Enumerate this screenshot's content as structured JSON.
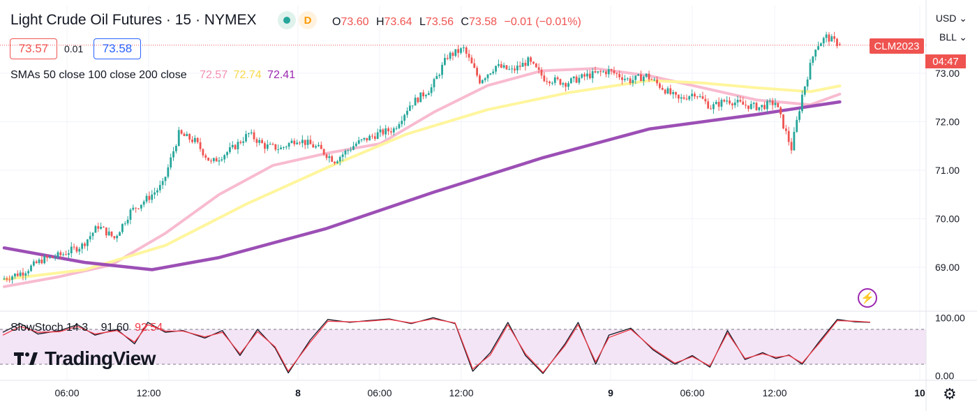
{
  "header": {
    "title": "Light Crude Oil Futures · 15 · NYMEX",
    "badge_dot_icon": "market-open-dot-icon",
    "badge_d": "D",
    "ohlc": [
      {
        "k": "O",
        "v": "73.60"
      },
      {
        "k": "H",
        "v": "73.64"
      },
      {
        "k": "L",
        "v": "73.56"
      },
      {
        "k": "C",
        "v": "73.58"
      },
      {
        "k": "",
        "v": "−0.01 (−0.01%)"
      }
    ]
  },
  "trade": {
    "sell": "73.57",
    "spread": "0.01",
    "buy": "73.58"
  },
  "sma_legend": {
    "label": "SMAs 50 close 100 close 200 close",
    "v50": "72.57",
    "v100": "72.74",
    "v200": "72.41"
  },
  "stoch_legend": {
    "label": "SlowStoch 14 3",
    "k": "91.60",
    "d": "92.54"
  },
  "logo": {
    "text": "TradingView"
  },
  "axis": {
    "currency": "USD",
    "unit": "BLL"
  },
  "price_tag": {
    "symbol": "CLM2023",
    "countdown": "04:47"
  },
  "colors": {
    "up": "#26a69a",
    "down": "#ef5350",
    "sma50": "#f8bbd0",
    "sma100": "#fff59d",
    "sma200": "#9c4fb5",
    "stoch_k": "#131722",
    "stoch_d": "#f23645",
    "stoch_band": "#f3e5f5"
  },
  "chart_data": [
    {
      "type": "candlestick",
      "title": "Light Crude Oil Futures · 15 · NYMEX",
      "y_ticks": [
        69,
        70,
        71,
        72,
        73
      ],
      "ylim": [
        68.5,
        73.95
      ],
      "x_ticks": [
        "06:00",
        "12:00",
        "8",
        "06:00",
        "12:00",
        "9",
        "06:00",
        "12:00",
        "10"
      ],
      "key_points": [
        {
          "t": 0,
          "p": 68.75
        },
        {
          "t": 8,
          "p": 68.9
        },
        {
          "t": 15,
          "p": 69.15
        },
        {
          "t": 22,
          "p": 69.25
        },
        {
          "t": 30,
          "p": 69.45
        },
        {
          "t": 36,
          "p": 69.85
        },
        {
          "t": 42,
          "p": 69.6
        },
        {
          "t": 48,
          "p": 70.15
        },
        {
          "t": 55,
          "p": 70.45
        },
        {
          "t": 60,
          "p": 70.7
        },
        {
          "t": 66,
          "p": 71.75
        },
        {
          "t": 72,
          "p": 71.6
        },
        {
          "t": 78,
          "p": 71.15
        },
        {
          "t": 86,
          "p": 71.45
        },
        {
          "t": 92,
          "p": 71.75
        },
        {
          "t": 98,
          "p": 71.5
        },
        {
          "t": 104,
          "p": 71.45
        },
        {
          "t": 110,
          "p": 71.65
        },
        {
          "t": 118,
          "p": 71.45
        },
        {
          "t": 124,
          "p": 71.2
        },
        {
          "t": 132,
          "p": 71.55
        },
        {
          "t": 140,
          "p": 71.75
        },
        {
          "t": 146,
          "p": 71.85
        },
        {
          "t": 152,
          "p": 72.35
        },
        {
          "t": 160,
          "p": 72.7
        },
        {
          "t": 166,
          "p": 73.35
        },
        {
          "t": 172,
          "p": 73.5
        },
        {
          "t": 178,
          "p": 72.85
        },
        {
          "t": 184,
          "p": 73.15
        },
        {
          "t": 190,
          "p": 73.05
        },
        {
          "t": 196,
          "p": 73.25
        },
        {
          "t": 202,
          "p": 72.9
        },
        {
          "t": 210,
          "p": 72.8
        },
        {
          "t": 218,
          "p": 72.95
        },
        {
          "t": 226,
          "p": 73.05
        },
        {
          "t": 234,
          "p": 72.85
        },
        {
          "t": 240,
          "p": 72.95
        },
        {
          "t": 246,
          "p": 72.7
        },
        {
          "t": 252,
          "p": 72.45
        },
        {
          "t": 258,
          "p": 72.6
        },
        {
          "t": 264,
          "p": 72.3
        },
        {
          "t": 270,
          "p": 72.45
        },
        {
          "t": 276,
          "p": 72.35
        },
        {
          "t": 282,
          "p": 72.3
        },
        {
          "t": 288,
          "p": 72.4
        },
        {
          "t": 294,
          "p": 71.45
        },
        {
          "t": 298,
          "p": 72.55
        },
        {
          "t": 303,
          "p": 73.55
        },
        {
          "t": 307,
          "p": 73.75
        },
        {
          "t": 311,
          "p": 73.62
        }
      ],
      "last": {
        "o": 73.6,
        "h": 73.64,
        "l": 73.56,
        "c": 73.58
      },
      "series": [
        {
          "name": "50",
          "points": [
            [
              0,
              68.6
            ],
            [
              20,
              68.8
            ],
            [
              40,
              69.05
            ],
            [
              60,
              69.7
            ],
            [
              80,
              70.5
            ],
            [
              100,
              71.1
            ],
            [
              120,
              71.35
            ],
            [
              140,
              71.55
            ],
            [
              160,
              72.2
            ],
            [
              180,
              72.75
            ],
            [
              200,
              73.05
            ],
            [
              220,
              73.1
            ],
            [
              240,
              72.95
            ],
            [
              260,
              72.7
            ],
            [
              280,
              72.45
            ],
            [
              300,
              72.35
            ],
            [
              311,
              72.57
            ]
          ]
        },
        {
          "name": "100",
          "points": [
            [
              0,
              68.75
            ],
            [
              30,
              68.95
            ],
            [
              60,
              69.45
            ],
            [
              90,
              70.3
            ],
            [
              120,
              71.05
            ],
            [
              150,
              71.75
            ],
            [
              180,
              72.25
            ],
            [
              210,
              72.6
            ],
            [
              240,
              72.85
            ],
            [
              260,
              72.8
            ],
            [
              280,
              72.7
            ],
            [
              300,
              72.62
            ],
            [
              311,
              72.74
            ]
          ]
        },
        {
          "name": "200",
          "points": [
            [
              0,
              69.4
            ],
            [
              30,
              69.1
            ],
            [
              55,
              68.95
            ],
            [
              80,
              69.2
            ],
            [
              120,
              69.8
            ],
            [
              160,
              70.55
            ],
            [
              200,
              71.25
            ],
            [
              240,
              71.85
            ],
            [
              280,
              72.15
            ],
            [
              311,
              72.41
            ]
          ]
        }
      ]
    },
    {
      "type": "line",
      "title": "SlowStoch 14 3",
      "y_ticks": [
        0,
        100
      ],
      "ylim": [
        -10,
        108
      ],
      "levels": [
        20,
        80
      ],
      "series": [
        {
          "name": "k",
          "points": [
            [
              0,
              75
            ],
            [
              8,
              90
            ],
            [
              16,
              72
            ],
            [
              26,
              78
            ],
            [
              34,
              88
            ],
            [
              42,
              70
            ],
            [
              52,
              80
            ],
            [
              60,
              55
            ],
            [
              66,
              92
            ],
            [
              74,
              75
            ],
            [
              82,
              78
            ],
            [
              92,
              65
            ],
            [
              100,
              78
            ],
            [
              108,
              35
            ],
            [
              116,
              80
            ],
            [
              124,
              48
            ],
            [
              130,
              5
            ],
            [
              140,
              62
            ],
            [
              148,
              97
            ],
            [
              158,
              92
            ],
            [
              166,
              95
            ],
            [
              176,
              98
            ],
            [
              186,
              90
            ],
            [
              196,
              100
            ],
            [
              206,
              90
            ],
            [
              214,
              8
            ],
            [
              222,
              40
            ],
            [
              230,
              92
            ],
            [
              238,
              35
            ],
            [
              246,
              4
            ],
            [
              256,
              55
            ],
            [
              262,
              92
            ],
            [
              270,
              20
            ],
            [
              276,
              70
            ],
            [
              286,
              82
            ],
            [
              296,
              45
            ],
            [
              306,
              20
            ],
            [
              314,
              35
            ],
            [
              322,
              15
            ],
            [
              330,
              78
            ],
            [
              338,
              28
            ],
            [
              346,
              40
            ],
            [
              352,
              30
            ],
            [
              358,
              36
            ],
            [
              364,
              20
            ],
            [
              372,
              60
            ],
            [
              380,
              97
            ],
            [
              388,
              93
            ],
            [
              395,
              92
            ]
          ]
        },
        {
          "name": "d",
          "points": [
            [
              0,
              70
            ],
            [
              8,
              85
            ],
            [
              16,
              75
            ],
            [
              26,
              76
            ],
            [
              34,
              85
            ],
            [
              42,
              72
            ],
            [
              52,
              78
            ],
            [
              60,
              58
            ],
            [
              66,
              88
            ],
            [
              74,
              77
            ],
            [
              82,
              77
            ],
            [
              92,
              67
            ],
            [
              100,
              75
            ],
            [
              108,
              38
            ],
            [
              116,
              76
            ],
            [
              124,
              50
            ],
            [
              130,
              8
            ],
            [
              140,
              58
            ],
            [
              148,
              94
            ],
            [
              158,
              93
            ],
            [
              166,
              94
            ],
            [
              176,
              97
            ],
            [
              186,
              91
            ],
            [
              196,
              98
            ],
            [
              206,
              91
            ],
            [
              214,
              12
            ],
            [
              222,
              36
            ],
            [
              230,
              88
            ],
            [
              238,
              38
            ],
            [
              246,
              6
            ],
            [
              256,
              52
            ],
            [
              262,
              88
            ],
            [
              270,
              24
            ],
            [
              276,
              66
            ],
            [
              286,
              80
            ],
            [
              296,
              47
            ],
            [
              306,
              22
            ],
            [
              314,
              33
            ],
            [
              322,
              17
            ],
            [
              330,
              74
            ],
            [
              338,
              30
            ],
            [
              346,
              38
            ],
            [
              352,
              32
            ],
            [
              358,
              35
            ],
            [
              364,
              22
            ],
            [
              372,
              57
            ],
            [
              380,
              95
            ],
            [
              388,
              94
            ],
            [
              395,
              92.5
            ]
          ]
        }
      ]
    }
  ]
}
